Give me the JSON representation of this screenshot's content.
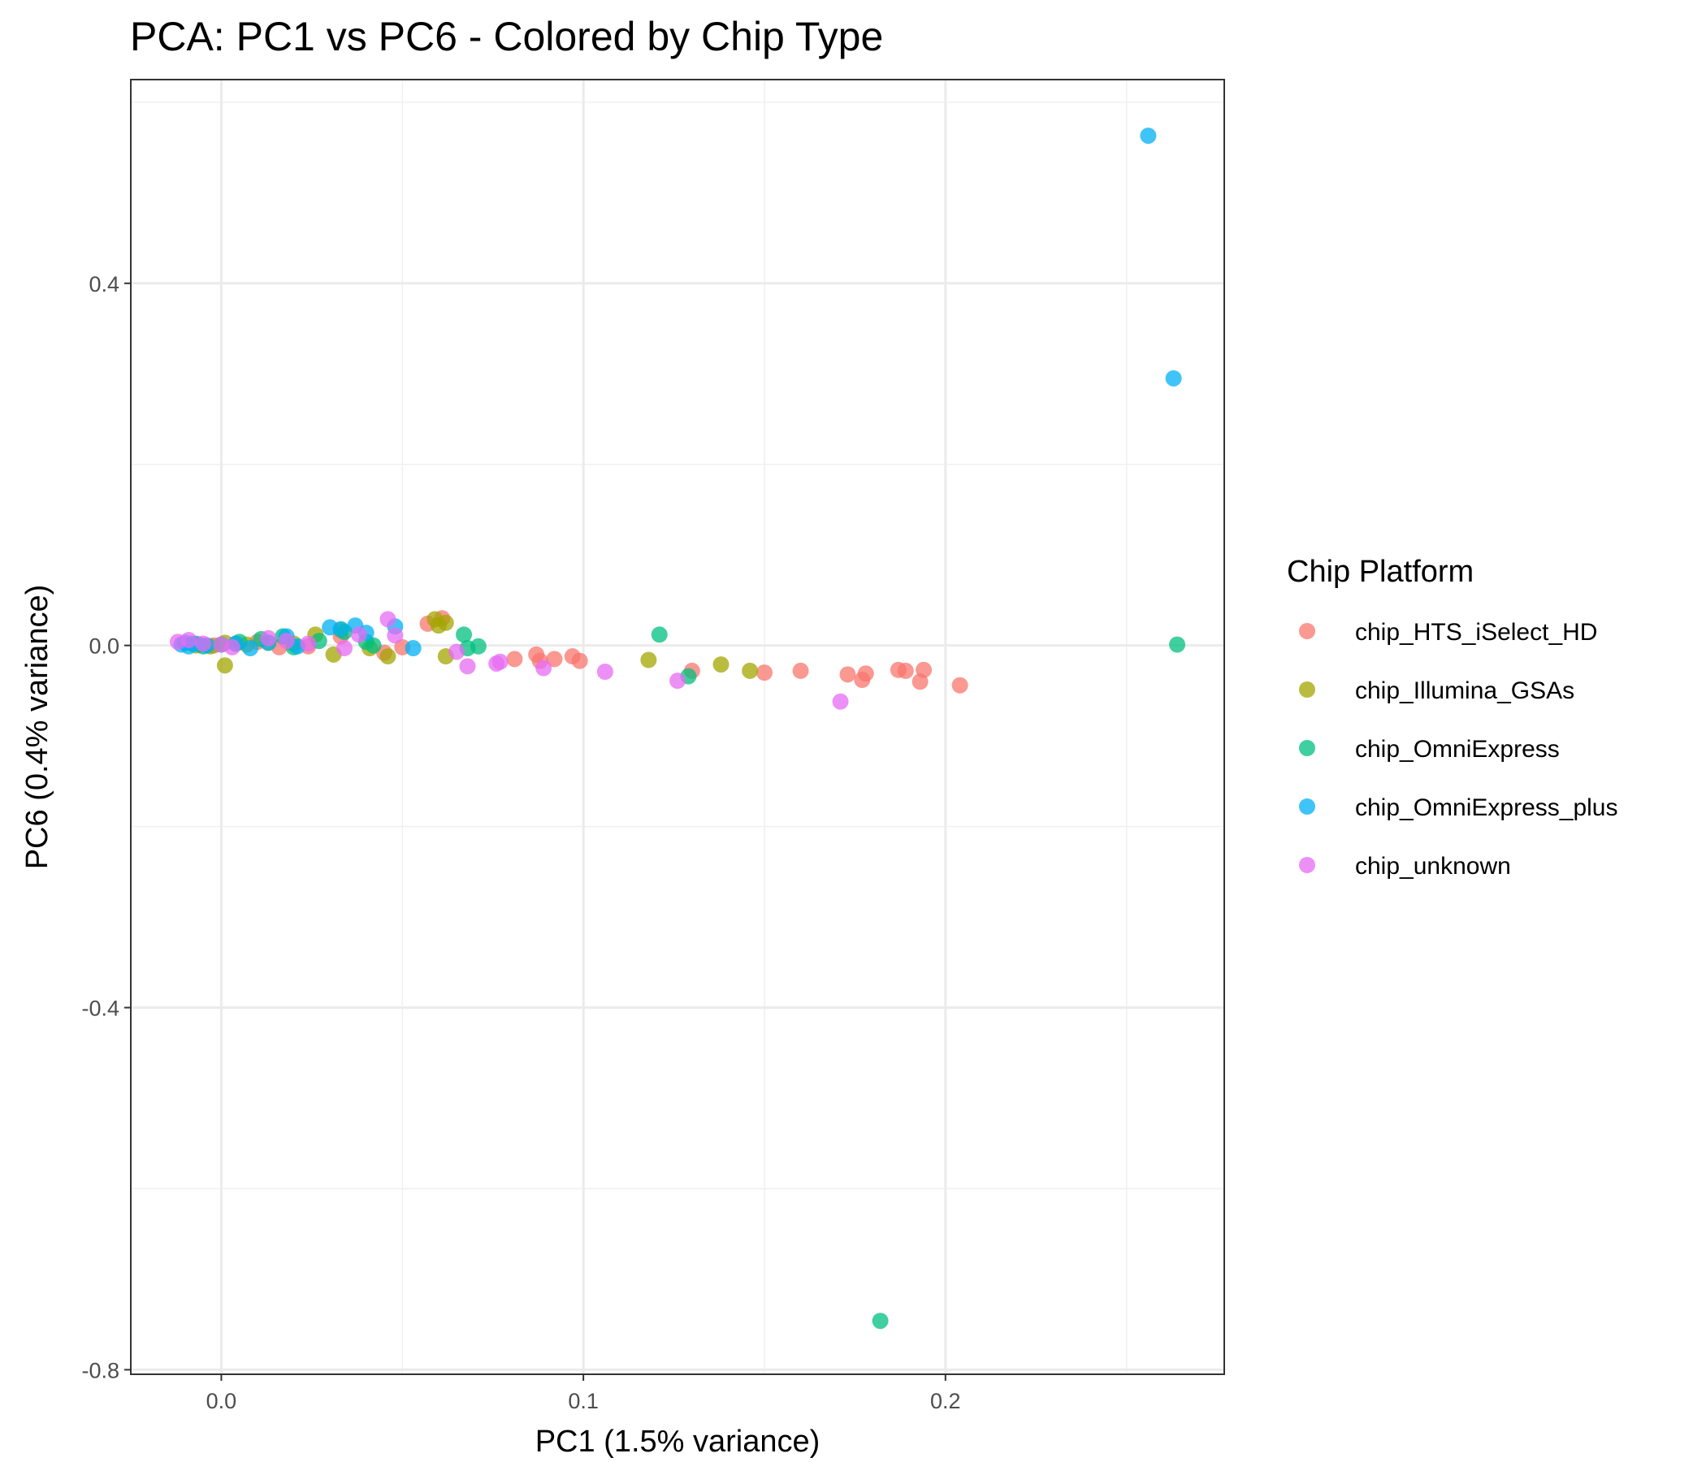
{
  "chart_data": {
    "type": "scatter",
    "title": "PCA: PC1 vs PC6 - Colored by Chip Type",
    "xlabel": "PC1 (1.5% variance)",
    "ylabel": "PC6 (0.4% variance)",
    "xlim": [
      -0.025,
      0.277
    ],
    "ylim": [
      -0.805,
      0.625
    ],
    "x_ticks": [
      0.0,
      0.1,
      0.2
    ],
    "x_tick_labels": [
      "0.0",
      "0.1",
      "0.2"
    ],
    "y_ticks": [
      -0.8,
      -0.4,
      0.0,
      0.4
    ],
    "y_tick_labels": [
      "-0.8",
      "-0.4",
      "0.0",
      "0.4"
    ],
    "grid": true,
    "legend": {
      "title": "Chip Platform",
      "position": "right"
    },
    "series": [
      {
        "name": "chip_HTS_iSelect_HD",
        "color": "#F8766D",
        "points": [
          [
            -0.006,
            0.001
          ],
          [
            -0.002,
            0.0
          ],
          [
            0.004,
            0.002
          ],
          [
            0.01,
            0.004
          ],
          [
            0.016,
            -0.002
          ],
          [
            0.024,
            -0.001
          ],
          [
            0.033,
            0.01
          ],
          [
            0.045,
            -0.008
          ],
          [
            0.05,
            -0.002
          ],
          [
            0.057,
            0.024
          ],
          [
            0.061,
            0.03
          ],
          [
            0.081,
            -0.015
          ],
          [
            0.087,
            -0.01
          ],
          [
            0.088,
            -0.017
          ],
          [
            0.092,
            -0.015
          ],
          [
            0.097,
            -0.012
          ],
          [
            0.099,
            -0.017
          ],
          [
            0.13,
            -0.028
          ],
          [
            0.15,
            -0.03
          ],
          [
            0.16,
            -0.028
          ],
          [
            0.173,
            -0.032
          ],
          [
            0.177,
            -0.038
          ],
          [
            0.178,
            -0.031
          ],
          [
            0.187,
            -0.027
          ],
          [
            0.189,
            -0.028
          ],
          [
            0.193,
            -0.04
          ],
          [
            0.194,
            -0.027
          ],
          [
            0.204,
            -0.044
          ]
        ]
      },
      {
        "name": "chip_Illumina_GSAs",
        "color": "#A3A500",
        "points": [
          [
            -0.007,
            0.0
          ],
          [
            -0.003,
            -0.001
          ],
          [
            0.001,
            0.003
          ],
          [
            0.001,
            -0.022
          ],
          [
            0.007,
            0.001
          ],
          [
            0.013,
            0.003
          ],
          [
            0.02,
            0.002
          ],
          [
            0.026,
            0.012
          ],
          [
            0.031,
            -0.01
          ],
          [
            0.033,
            0.017
          ],
          [
            0.041,
            -0.003
          ],
          [
            0.046,
            -0.012
          ],
          [
            0.059,
            0.029
          ],
          [
            0.06,
            0.022
          ],
          [
            0.062,
            0.025
          ],
          [
            0.062,
            -0.012
          ],
          [
            0.118,
            -0.016
          ],
          [
            0.138,
            -0.021
          ],
          [
            0.146,
            -0.028
          ]
        ]
      },
      {
        "name": "chip_OmniExpress",
        "color": "#00BF7D",
        "points": [
          [
            -0.008,
            0.002
          ],
          [
            -0.005,
            -0.001
          ],
          [
            0.0,
            0.001
          ],
          [
            0.005,
            0.004
          ],
          [
            0.011,
            0.007
          ],
          [
            0.017,
            0.01
          ],
          [
            0.02,
            -0.002
          ],
          [
            0.027,
            0.005
          ],
          [
            0.034,
            0.015
          ],
          [
            0.04,
            0.004
          ],
          [
            0.042,
            0.0
          ],
          [
            0.067,
            0.012
          ],
          [
            0.068,
            -0.003
          ],
          [
            0.071,
            -0.001
          ],
          [
            0.121,
            0.012
          ],
          [
            0.129,
            -0.034
          ],
          [
            0.182,
            -0.746
          ],
          [
            0.264,
            0.001
          ]
        ]
      },
      {
        "name": "chip_OmniExpress_plus",
        "color": "#00B0F6",
        "points": [
          [
            -0.011,
            0.001
          ],
          [
            -0.01,
            0.003
          ],
          [
            -0.009,
            -0.001
          ],
          [
            -0.007,
            0.002
          ],
          [
            -0.004,
            0.0
          ],
          [
            0.004,
            0.002
          ],
          [
            0.008,
            -0.003
          ],
          [
            0.013,
            0.003
          ],
          [
            0.018,
            0.01
          ],
          [
            0.021,
            -0.001
          ],
          [
            0.03,
            0.02
          ],
          [
            0.033,
            0.018
          ],
          [
            0.037,
            0.022
          ],
          [
            0.04,
            0.014
          ],
          [
            0.048,
            0.021
          ],
          [
            0.053,
            -0.003
          ],
          [
            0.256,
            0.563
          ],
          [
            0.263,
            0.295
          ]
        ]
      },
      {
        "name": "chip_unknown",
        "color": "#E76BF3",
        "points": [
          [
            -0.012,
            0.004
          ],
          [
            -0.009,
            0.006
          ],
          [
            -0.005,
            0.002
          ],
          [
            0.0,
            0.001
          ],
          [
            0.003,
            -0.002
          ],
          [
            0.013,
            0.008
          ],
          [
            0.018,
            0.005
          ],
          [
            0.024,
            0.002
          ],
          [
            0.034,
            -0.003
          ],
          [
            0.038,
            0.012
          ],
          [
            0.046,
            0.029
          ],
          [
            0.048,
            0.011
          ],
          [
            0.065,
            -0.007
          ],
          [
            0.068,
            -0.023
          ],
          [
            0.076,
            -0.02
          ],
          [
            0.077,
            -0.018
          ],
          [
            0.089,
            -0.025
          ],
          [
            0.106,
            -0.029
          ],
          [
            0.126,
            -0.039
          ],
          [
            0.171,
            -0.062
          ]
        ]
      }
    ]
  }
}
